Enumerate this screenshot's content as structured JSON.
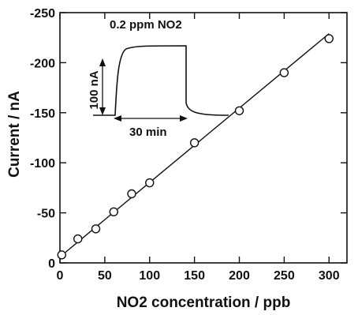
{
  "chart_data": {
    "type": "scatter",
    "title": "",
    "xlabel": "NO2 concentration / ppb",
    "ylabel": "Current / nA",
    "xlim": [
      0,
      320
    ],
    "ylim": [
      0,
      -250
    ],
    "x_ticks": [
      "0",
      "50",
      "100",
      "150",
      "200",
      "250",
      "300"
    ],
    "y_ticks": [
      "0",
      "-50",
      "-100",
      "-150",
      "-200",
      "-250"
    ],
    "grid": false,
    "series": [
      {
        "marker": "open-circle",
        "x": [
          2,
          20,
          40,
          60,
          80,
          100,
          150,
          200,
          250,
          300
        ],
        "y": [
          -8,
          -24,
          -34,
          -51,
          -69,
          -80,
          -120,
          -152,
          -190,
          -224
        ]
      }
    ],
    "fit_line": {
      "x": [
        0,
        300
      ],
      "y": [
        -6,
        -229
      ]
    },
    "inset": {
      "title": "0.2 ppm NO2",
      "current_scale_label": "100 nA",
      "time_scale_label": "30 min"
    }
  }
}
